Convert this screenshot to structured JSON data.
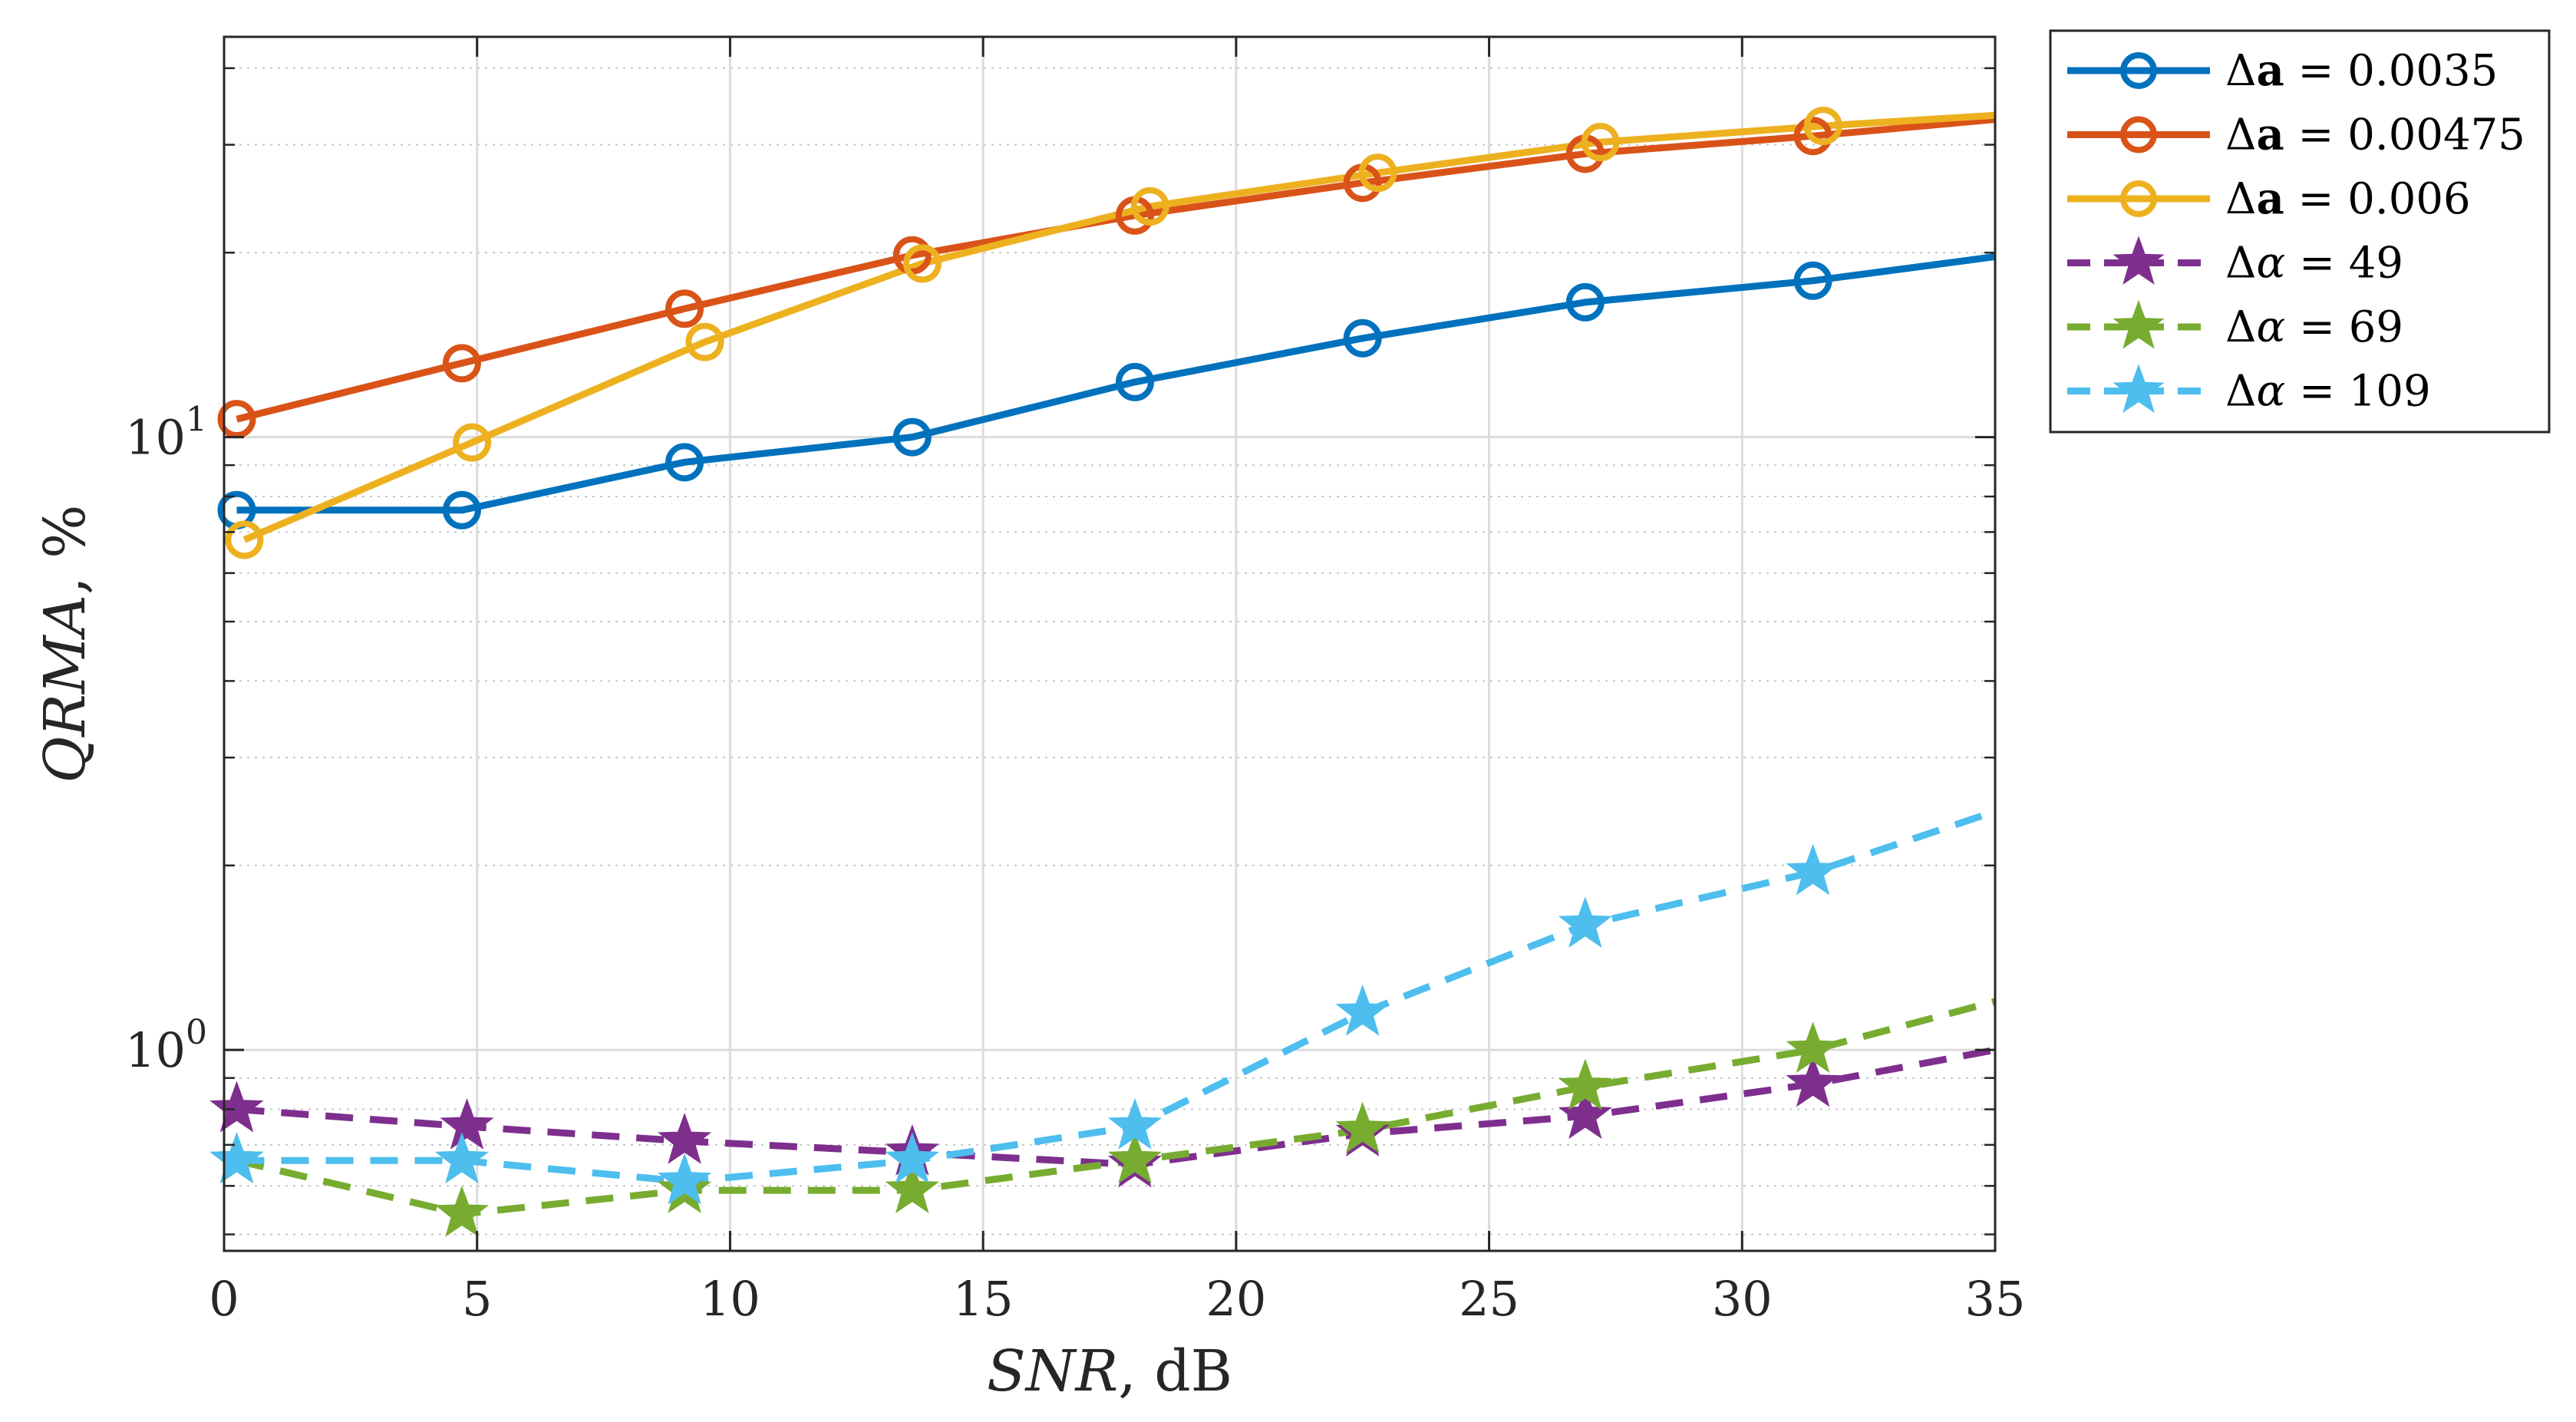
{
  "chart_data": {
    "type": "line",
    "title": "",
    "xlabel": "SNR",
    "xlabel_unit": ", dB",
    "ylabel": "QRMA",
    "ylabel_unit": ", %",
    "xscale": "linear",
    "yscale": "log",
    "xlim": [
      0,
      35
    ],
    "ylim": [
      0.47,
      45
    ],
    "xticks": [
      0,
      5,
      10,
      15,
      20,
      25,
      30,
      35
    ],
    "xtick_labels": [
      "0",
      "5",
      "10",
      "15",
      "20",
      "25",
      "30",
      "35"
    ],
    "yticks": [
      1,
      10
    ],
    "ytick_labels": [
      {
        "base": "10",
        "exp": "0"
      },
      {
        "base": "10",
        "exp": "1"
      }
    ],
    "grid": true,
    "legend_position": "outside top-right",
    "series": [
      {
        "name": "Δa = 0.0035",
        "legend_symbol": "Δ",
        "legend_var": "a",
        "legend_value": "= 0.0035",
        "var_bold": true,
        "color": "#0072BD",
        "dashed": false,
        "marker": "circle",
        "x": [
          0.25,
          4.7,
          9.1,
          13.6,
          18,
          22.5,
          26.9,
          31.4,
          35
        ],
        "y": [
          7.6,
          7.6,
          9.1,
          10.0,
          12.3,
          14.5,
          16.6,
          18.0,
          19.7
        ]
      },
      {
        "name": "Δa = 0.00475",
        "legend_symbol": "Δ",
        "legend_var": "a",
        "legend_value": "= 0.00475",
        "var_bold": true,
        "color": "#D95319",
        "dashed": false,
        "marker": "circle",
        "x": [
          0.25,
          4.7,
          9.1,
          13.6,
          18,
          22.5,
          26.9,
          31.4,
          35
        ],
        "y": [
          10.7,
          13.2,
          16.2,
          19.8,
          23.0,
          26.0,
          29.0,
          31.0,
          33.0
        ]
      },
      {
        "name": "Δa = 0.006",
        "legend_symbol": "Δ",
        "legend_var": "a",
        "legend_value": "= 0.006",
        "var_bold": true,
        "color": "#EDB120",
        "dashed": false,
        "marker": "circle",
        "x": [
          0.4,
          4.9,
          9.5,
          13.8,
          18.3,
          22.8,
          27.2,
          31.6,
          35
        ],
        "y": [
          6.8,
          9.8,
          14.3,
          19.2,
          23.8,
          27.0,
          30.3,
          32.2,
          33.5
        ]
      },
      {
        "name": "Δα = 49",
        "legend_symbol": "Δ",
        "legend_var": "α",
        "legend_value": "= 49",
        "var_bold": false,
        "color": "#7E2F8E",
        "dashed": true,
        "marker": "star",
        "x": [
          0.25,
          4.8,
          9.1,
          13.6,
          18,
          22.5,
          26.9,
          31.4,
          35
        ],
        "y": [
          0.8,
          0.75,
          0.71,
          0.68,
          0.65,
          0.73,
          0.78,
          0.88,
          1.0
        ]
      },
      {
        "name": "Δα = 69",
        "legend_symbol": "Δ",
        "legend_var": "α",
        "legend_value": "= 69",
        "var_bold": false,
        "color": "#77AC30",
        "dashed": true,
        "marker": "star",
        "x": [
          0.25,
          4.7,
          9.1,
          13.6,
          18,
          22.5,
          26.9,
          31.4,
          35
        ],
        "y": [
          0.66,
          0.54,
          0.59,
          0.59,
          0.66,
          0.74,
          0.87,
          1.0,
          1.2
        ]
      },
      {
        "name": "Δα = 109",
        "legend_symbol": "Δ",
        "legend_var": "α",
        "legend_value": "= 109",
        "var_bold": false,
        "color": "#4DBEEE",
        "dashed": true,
        "marker": "star",
        "x": [
          0.25,
          4.7,
          9.1,
          13.6,
          18,
          22.5,
          26.9,
          31.4,
          35
        ],
        "y": [
          0.66,
          0.66,
          0.61,
          0.66,
          0.75,
          1.15,
          1.6,
          1.95,
          2.45
        ]
      }
    ]
  }
}
